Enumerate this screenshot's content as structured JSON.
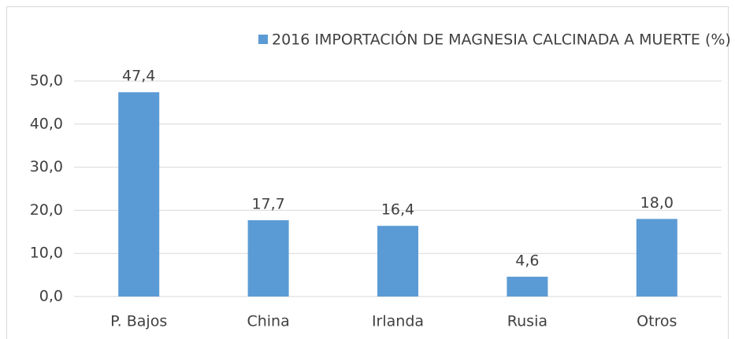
{
  "chart_data": {
    "type": "bar",
    "categories": [
      "P. Bajos",
      "China",
      "Irlanda",
      "Rusia",
      "Otros"
    ],
    "series": [
      {
        "name": "2016 IMPORTACIÓN DE MAGNESIA CALCINADA A MUERTE (%)",
        "color": "#5b9bd5",
        "values": [
          47.4,
          17.7,
          16.4,
          4.6,
          18.0
        ],
        "value_labels": [
          "47,4",
          "17,7",
          "16,4",
          "4,6",
          "18,0"
        ]
      }
    ],
    "ylim": [
      0,
      50
    ],
    "yticks": [
      {
        "value": 0,
        "label": "0,0"
      },
      {
        "value": 10,
        "label": "10,0"
      },
      {
        "value": 20,
        "label": "20,0"
      },
      {
        "value": 30,
        "label": "30,0"
      },
      {
        "value": 40,
        "label": "40,0"
      },
      {
        "value": 50,
        "label": "50,0"
      }
    ],
    "grid": true,
    "legend": "top"
  }
}
